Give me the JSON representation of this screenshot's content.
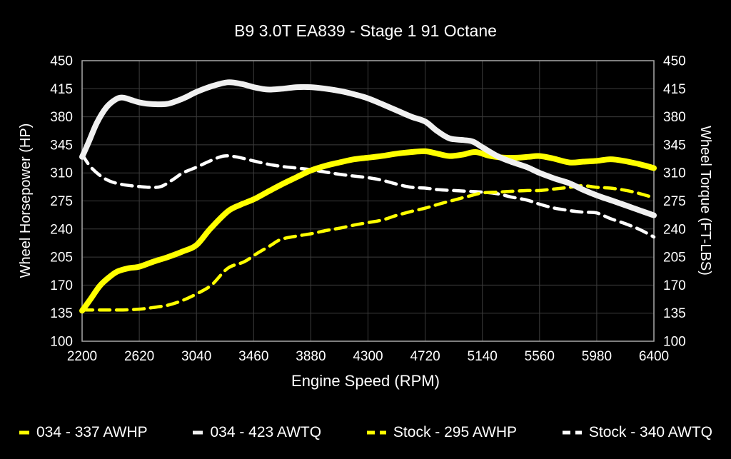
{
  "chart_data": {
    "type": "line",
    "title": "B9 3.0T EA839 - Stage 1 91 Octane",
    "xlabel": "Engine Speed (RPM)",
    "ylabel_left": "Wheel Horsepower (HP)",
    "ylabel_right": "Wheel Torque (FT-LBS)",
    "xlim": [
      2200,
      6400
    ],
    "ylim": [
      100,
      450
    ],
    "x_ticks": [
      2200,
      2620,
      3040,
      3460,
      3880,
      4300,
      4720,
      5140,
      5560,
      5980,
      6400
    ],
    "y_ticks": [
      100,
      135,
      170,
      205,
      240,
      275,
      310,
      345,
      380,
      415,
      450
    ],
    "grid": true,
    "background": "#000000",
    "grid_color": "#3d3d3d",
    "frame_color": "#a9a9a9",
    "text_color": "#ffffff",
    "legend_position": "bottom",
    "series": [
      {
        "name": "034 AWHP",
        "legend_label": "034 - 337 AWHP",
        "color": "#ffff00",
        "style": "solid",
        "width": 8,
        "peak": 337,
        "points": [
          [
            2200,
            138
          ],
          [
            2260,
            152
          ],
          [
            2330,
            169
          ],
          [
            2400,
            180
          ],
          [
            2460,
            187
          ],
          [
            2540,
            191
          ],
          [
            2620,
            193
          ],
          [
            2720,
            199
          ],
          [
            2830,
            205
          ],
          [
            2940,
            212
          ],
          [
            3040,
            220
          ],
          [
            3140,
            240
          ],
          [
            3270,
            262
          ],
          [
            3360,
            270
          ],
          [
            3460,
            277
          ],
          [
            3570,
            287
          ],
          [
            3670,
            296
          ],
          [
            3780,
            305
          ],
          [
            3880,
            313
          ],
          [
            3990,
            319
          ],
          [
            4090,
            323
          ],
          [
            4200,
            327
          ],
          [
            4300,
            329
          ],
          [
            4400,
            331
          ],
          [
            4510,
            334
          ],
          [
            4620,
            336
          ],
          [
            4720,
            337
          ],
          [
            4810,
            334
          ],
          [
            4900,
            331
          ],
          [
            5000,
            333
          ],
          [
            5090,
            336
          ],
          [
            5200,
            331
          ],
          [
            5300,
            329
          ],
          [
            5400,
            329
          ],
          [
            5480,
            330
          ],
          [
            5560,
            331
          ],
          [
            5660,
            328
          ],
          [
            5780,
            323
          ],
          [
            5880,
            324
          ],
          [
            5980,
            325
          ],
          [
            6080,
            327
          ],
          [
            6180,
            325
          ],
          [
            6290,
            321
          ],
          [
            6400,
            316
          ]
        ]
      },
      {
        "name": "034 AWTQ",
        "legend_label": "034 - 423 AWTQ",
        "color": "#f0f0f0",
        "style": "solid",
        "width": 8,
        "peak": 423,
        "points": [
          [
            2200,
            330
          ],
          [
            2250,
            349
          ],
          [
            2310,
            373
          ],
          [
            2380,
            392
          ],
          [
            2450,
            402
          ],
          [
            2500,
            404
          ],
          [
            2560,
            401
          ],
          [
            2620,
            398
          ],
          [
            2700,
            396
          ],
          [
            2820,
            396
          ],
          [
            2900,
            400
          ],
          [
            2970,
            405
          ],
          [
            3040,
            411
          ],
          [
            3150,
            418
          ],
          [
            3270,
            423
          ],
          [
            3370,
            421
          ],
          [
            3460,
            417
          ],
          [
            3560,
            414
          ],
          [
            3670,
            415
          ],
          [
            3780,
            417
          ],
          [
            3880,
            417
          ],
          [
            3990,
            415
          ],
          [
            4100,
            412
          ],
          [
            4200,
            408
          ],
          [
            4300,
            403
          ],
          [
            4400,
            396
          ],
          [
            4510,
            388
          ],
          [
            4620,
            380
          ],
          [
            4720,
            374
          ],
          [
            4810,
            362
          ],
          [
            4900,
            353
          ],
          [
            5000,
            351
          ],
          [
            5070,
            349
          ],
          [
            5140,
            342
          ],
          [
            5250,
            331
          ],
          [
            5350,
            324
          ],
          [
            5470,
            317
          ],
          [
            5560,
            310
          ],
          [
            5670,
            303
          ],
          [
            5780,
            297
          ],
          [
            5880,
            289
          ],
          [
            5980,
            282
          ],
          [
            6100,
            275
          ],
          [
            6200,
            269
          ],
          [
            6300,
            263
          ],
          [
            6400,
            257
          ]
        ]
      },
      {
        "name": "Stock AWHP",
        "legend_label": "Stock - 295 AWHP",
        "color": "#ffff00",
        "style": "dashed",
        "width": 4.5,
        "peak": 295,
        "points": [
          [
            2200,
            139
          ],
          [
            2350,
            139
          ],
          [
            2500,
            139
          ],
          [
            2620,
            140
          ],
          [
            2720,
            142
          ],
          [
            2830,
            145
          ],
          [
            2940,
            151
          ],
          [
            3040,
            159
          ],
          [
            3150,
            170
          ],
          [
            3270,
            191
          ],
          [
            3390,
            199
          ],
          [
            3480,
            209
          ],
          [
            3580,
            219
          ],
          [
            3660,
            227
          ],
          [
            3770,
            231
          ],
          [
            3880,
            234
          ],
          [
            3990,
            238
          ],
          [
            4090,
            241
          ],
          [
            4200,
            245
          ],
          [
            4300,
            248
          ],
          [
            4400,
            251
          ],
          [
            4510,
            257
          ],
          [
            4620,
            262
          ],
          [
            4720,
            266
          ],
          [
            4820,
            271
          ],
          [
            4930,
            276
          ],
          [
            5040,
            281
          ],
          [
            5140,
            285
          ],
          [
            5250,
            286
          ],
          [
            5350,
            287
          ],
          [
            5470,
            288
          ],
          [
            5560,
            288
          ],
          [
            5670,
            290
          ],
          [
            5780,
            292
          ],
          [
            5880,
            294
          ],
          [
            5980,
            292
          ],
          [
            6080,
            291
          ],
          [
            6200,
            288
          ],
          [
            6300,
            284
          ],
          [
            6400,
            279
          ]
        ]
      },
      {
        "name": "Stock AWTQ",
        "legend_label": "Stock - 340 AWTQ",
        "color": "#ffffff",
        "style": "dashed",
        "width": 4.5,
        "peak": 340,
        "points": [
          [
            2200,
            333
          ],
          [
            2260,
            318
          ],
          [
            2330,
            307
          ],
          [
            2400,
            300
          ],
          [
            2480,
            296
          ],
          [
            2560,
            294
          ],
          [
            2620,
            293
          ],
          [
            2700,
            292
          ],
          [
            2780,
            293
          ],
          [
            2870,
            302
          ],
          [
            2940,
            310
          ],
          [
            3040,
            317
          ],
          [
            3140,
            325
          ],
          [
            3240,
            331
          ],
          [
            3330,
            330
          ],
          [
            3460,
            325
          ],
          [
            3560,
            321
          ],
          [
            3670,
            318
          ],
          [
            3780,
            316
          ],
          [
            3880,
            314
          ],
          [
            3990,
            311
          ],
          [
            4100,
            308
          ],
          [
            4200,
            306
          ],
          [
            4300,
            304
          ],
          [
            4400,
            301
          ],
          [
            4510,
            296
          ],
          [
            4620,
            292
          ],
          [
            4720,
            291
          ],
          [
            4820,
            289
          ],
          [
            4930,
            288
          ],
          [
            5040,
            287
          ],
          [
            5140,
            286
          ],
          [
            5250,
            284
          ],
          [
            5350,
            280
          ],
          [
            5470,
            276
          ],
          [
            5560,
            271
          ],
          [
            5670,
            266
          ],
          [
            5780,
            263
          ],
          [
            5880,
            261
          ],
          [
            5980,
            260
          ],
          [
            6080,
            253
          ],
          [
            6200,
            246
          ],
          [
            6300,
            239
          ],
          [
            6400,
            230
          ]
        ]
      }
    ]
  }
}
